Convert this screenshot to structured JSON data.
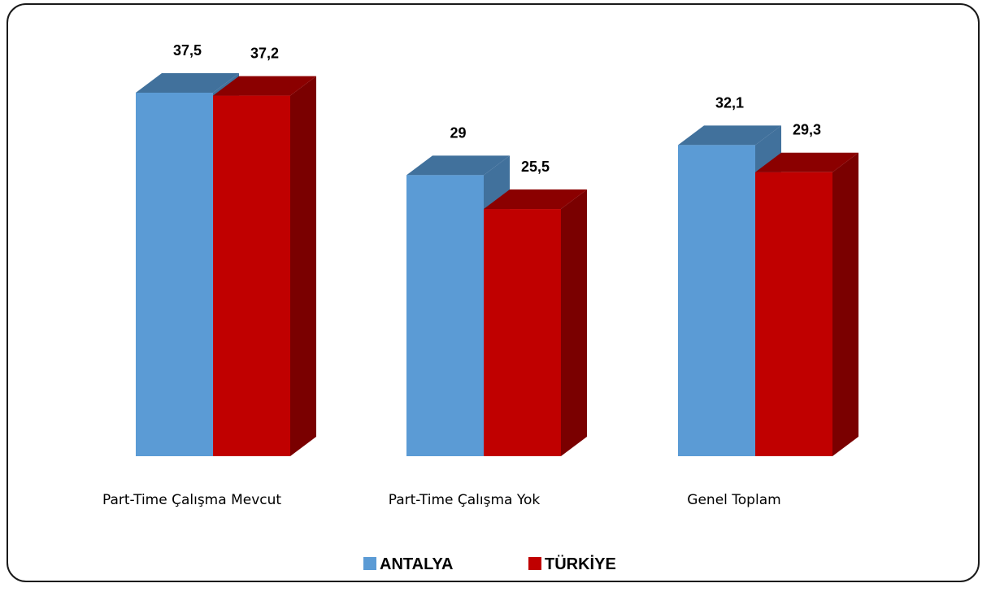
{
  "chart_data": {
    "type": "bar",
    "categories": [
      "Part-Time Çalışma Mevcut",
      "Part-Time Çalışma Yok",
      "Genel Toplam"
    ],
    "series": [
      {
        "name": "ANTALYA",
        "values": [
          37.5,
          29,
          32.1
        ],
        "labels": [
          "37,5",
          "29",
          "32,1"
        ],
        "color": "#5b9bd5"
      },
      {
        "name": "TÜRKİYE",
        "values": [
          37.2,
          25.5,
          29.3
        ],
        "labels": [
          "37,2",
          "25,5",
          "29,3"
        ],
        "color": "#c00000"
      }
    ],
    "ylim": [
      0,
      37.5
    ],
    "grid": false,
    "legend": "bottom",
    "style": "3d-column"
  }
}
